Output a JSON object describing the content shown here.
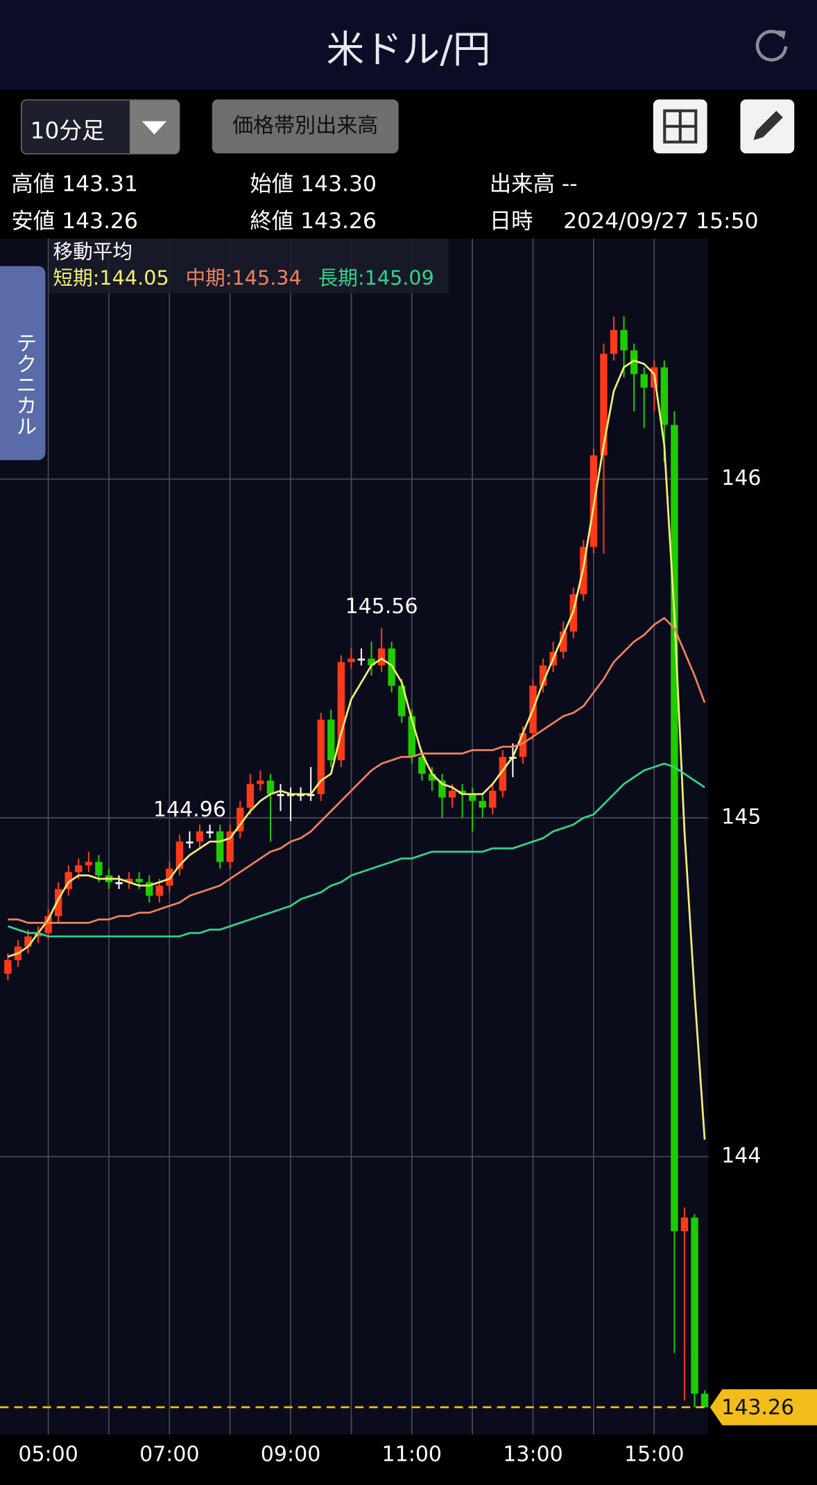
{
  "header": {
    "title": "米ドル/円"
  },
  "toolbar": {
    "interval": "10分足",
    "volume_button": "価格帯別出来高"
  },
  "side_tab": "テクニカル",
  "info": {
    "high_label": "高値",
    "high": "143.31",
    "open_label": "始値",
    "open": "143.30",
    "volume_label": "出来高",
    "volume": "--",
    "low_label": "安値",
    "low": "143.26",
    "close_label": "終値",
    "close": "143.26",
    "time_label": "日時",
    "time": "2024/09/27 15:50"
  },
  "chart_data": {
    "type": "candlestick",
    "categories": [
      null,
      null,
      null,
      null,
      "05:00",
      null,
      null,
      null,
      null,
      null,
      null,
      null,
      null,
      null,
      null,
      null,
      "07:00",
      null,
      null,
      null,
      null,
      null,
      null,
      null,
      null,
      null,
      null,
      null,
      "09:00",
      null,
      null,
      null,
      null,
      null,
      null,
      null,
      null,
      null,
      null,
      null,
      "11:00",
      null,
      null,
      null,
      null,
      null,
      null,
      null,
      null,
      null,
      null,
      null,
      "13:00",
      null,
      null,
      null,
      null,
      null,
      null,
      null,
      null,
      null,
      null,
      null,
      "15:00",
      null,
      null,
      null,
      null,
      null
    ],
    "open": [
      144.54,
      144.58,
      144.62,
      144.65,
      144.66,
      144.71,
      144.79,
      144.84,
      144.86,
      144.87,
      144.83,
      144.81,
      144.81,
      144.82,
      144.81,
      144.77,
      144.8,
      144.85,
      144.93,
      144.93,
      144.96,
      144.96,
      144.87,
      144.96,
      145.03,
      145.1,
      145.11,
      145.07,
      145.07,
      145.07,
      145.07,
      145.07,
      145.29,
      145.17,
      145.46,
      145.47,
      145.47,
      145.45,
      145.5,
      145.39,
      145.3,
      145.18,
      145.13,
      145.11,
      145.06,
      145.08,
      145.07,
      145.05,
      145.03,
      145.08,
      145.18,
      145.18,
      145.25,
      145.39,
      145.45,
      145.49,
      145.55,
      145.66,
      145.8,
      146.07,
      146.37,
      146.44,
      146.38,
      146.31,
      146.27,
      146.33,
      146.16,
      143.78,
      143.82,
      143.3
    ],
    "high": [
      144.6,
      144.64,
      144.67,
      144.68,
      144.73,
      144.81,
      144.86,
      144.88,
      144.9,
      144.89,
      144.85,
      144.83,
      144.84,
      144.84,
      144.83,
      144.82,
      144.87,
      144.95,
      144.96,
      144.98,
      144.98,
      144.98,
      144.98,
      145.05,
      145.13,
      145.14,
      145.13,
      145.1,
      145.09,
      145.09,
      145.15,
      145.31,
      145.32,
      145.48,
      145.5,
      145.5,
      145.52,
      145.56,
      145.52,
      145.41,
      145.32,
      145.2,
      145.15,
      145.13,
      145.1,
      145.1,
      145.09,
      145.07,
      145.1,
      145.2,
      145.22,
      145.27,
      145.41,
      145.47,
      145.52,
      145.58,
      145.68,
      145.82,
      146.09,
      146.4,
      146.48,
      146.48,
      146.4,
      146.33,
      146.35,
      146.35,
      146.2,
      143.85,
      143.83,
      143.31
    ],
    "low": [
      144.52,
      144.56,
      144.6,
      144.63,
      144.64,
      144.69,
      144.77,
      144.82,
      144.84,
      144.81,
      144.79,
      144.79,
      144.79,
      144.79,
      144.75,
      144.75,
      144.78,
      144.83,
      144.91,
      144.91,
      144.94,
      144.85,
      144.85,
      144.94,
      145.01,
      145.08,
      144.93,
      145.02,
      144.99,
      145.05,
      145.05,
      145.05,
      145.15,
      145.15,
      145.44,
      145.45,
      145.42,
      145.43,
      145.37,
      145.28,
      145.16,
      145.11,
      145.08,
      145.0,
      145.03,
      145.0,
      144.96,
      145.0,
      145.01,
      145.06,
      145.12,
      145.16,
      145.23,
      145.37,
      145.43,
      145.47,
      145.53,
      145.64,
      145.78,
      145.78,
      146.35,
      146.3,
      146.2,
      146.15,
      146.2,
      146.05,
      143.42,
      143.28,
      143.26,
      143.26
    ],
    "close": [
      144.58,
      144.62,
      144.65,
      144.66,
      144.71,
      144.79,
      144.84,
      144.86,
      144.87,
      144.83,
      144.81,
      144.81,
      144.82,
      144.81,
      144.77,
      144.8,
      144.85,
      144.93,
      144.93,
      144.96,
      144.96,
      144.87,
      144.96,
      145.03,
      145.1,
      145.11,
      145.07,
      145.07,
      145.07,
      145.07,
      145.07,
      145.29,
      145.17,
      145.46,
      145.47,
      145.47,
      145.45,
      145.5,
      145.39,
      145.3,
      145.18,
      145.13,
      145.11,
      145.06,
      145.08,
      145.07,
      145.05,
      145.03,
      145.08,
      145.18,
      145.18,
      145.25,
      145.39,
      145.45,
      145.49,
      145.55,
      145.66,
      145.8,
      146.07,
      146.37,
      146.44,
      146.38,
      146.31,
      146.27,
      146.33,
      146.16,
      143.78,
      143.82,
      143.3,
      143.26
    ],
    "up_color": "#ff3a1a",
    "down_color": "#1fcc00",
    "flat_color": "#ffffff",
    "legend_title": "移動平均",
    "series": [
      {
        "name": "短期:144.05",
        "color": "#f4ee74",
        "values": [
          144.59,
          144.6,
          144.62,
          144.66,
          144.7,
          144.76,
          144.81,
          144.83,
          144.83,
          144.82,
          144.82,
          144.82,
          144.81,
          144.8,
          144.8,
          144.81,
          144.82,
          144.86,
          144.89,
          144.91,
          144.93,
          144.93,
          144.94,
          144.98,
          145.02,
          145.05,
          145.07,
          145.08,
          145.07,
          145.07,
          145.07,
          145.11,
          145.13,
          145.25,
          145.35,
          145.4,
          145.45,
          145.47,
          145.45,
          145.4,
          145.29,
          145.19,
          145.13,
          145.1,
          145.09,
          145.07,
          145.07,
          145.07,
          145.1,
          145.14,
          145.18,
          145.25,
          145.32,
          145.4,
          145.47,
          145.54,
          145.61,
          145.74,
          145.92,
          146.1,
          146.26,
          146.33,
          146.35,
          146.34,
          146.31,
          146.1,
          145.6,
          144.96,
          144.48,
          144.05
        ]
      },
      {
        "name": "中期:145.34",
        "color": "#f0825a",
        "values": [
          144.7,
          144.7,
          144.69,
          144.69,
          144.69,
          144.69,
          144.69,
          144.69,
          144.69,
          144.7,
          144.7,
          144.71,
          144.71,
          144.72,
          144.72,
          144.73,
          144.74,
          144.75,
          144.77,
          144.78,
          144.79,
          144.8,
          144.82,
          144.84,
          144.86,
          144.88,
          144.9,
          144.91,
          144.93,
          144.94,
          144.96,
          144.99,
          145.02,
          145.05,
          145.08,
          145.11,
          145.14,
          145.16,
          145.17,
          145.18,
          145.18,
          145.19,
          145.19,
          145.19,
          145.19,
          145.19,
          145.2,
          145.2,
          145.2,
          145.21,
          145.21,
          145.22,
          145.24,
          145.26,
          145.28,
          145.3,
          145.31,
          145.33,
          145.37,
          145.41,
          145.46,
          145.49,
          145.52,
          145.54,
          145.57,
          145.59,
          145.56,
          145.49,
          145.42,
          145.34
        ]
      },
      {
        "name": "長期:145.09",
        "color": "#2fd68c",
        "values": [
          144.68,
          144.67,
          144.66,
          144.66,
          144.65,
          144.65,
          144.65,
          144.65,
          144.65,
          144.65,
          144.65,
          144.65,
          144.65,
          144.65,
          144.65,
          144.65,
          144.65,
          144.65,
          144.66,
          144.66,
          144.67,
          144.67,
          144.68,
          144.69,
          144.7,
          144.71,
          144.72,
          144.73,
          144.74,
          144.76,
          144.77,
          144.78,
          144.8,
          144.81,
          144.83,
          144.84,
          144.85,
          144.86,
          144.87,
          144.88,
          144.88,
          144.89,
          144.9,
          144.9,
          144.9,
          144.9,
          144.9,
          144.9,
          144.91,
          144.91,
          144.91,
          144.92,
          144.93,
          144.94,
          144.96,
          144.97,
          144.98,
          145.0,
          145.01,
          145.04,
          145.07,
          145.1,
          145.12,
          145.14,
          145.15,
          145.16,
          145.15,
          145.13,
          145.11,
          145.09
        ]
      }
    ],
    "annotations": [
      "145.56",
      "144.96"
    ],
    "last_price_label": "143.26",
    "last_price_color": "#f2bd1a",
    "ylim": [
      143.18,
      146.71
    ],
    "yticks": [
      144,
      145,
      146
    ],
    "grid": true
  }
}
